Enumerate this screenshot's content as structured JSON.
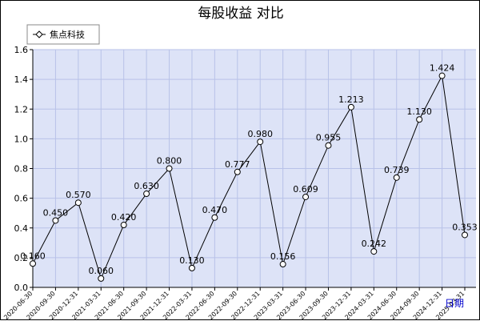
{
  "chart_data": {
    "type": "line",
    "title": "每股收益  对比",
    "xlabel": "日期",
    "ylabel": "",
    "ylim": [
      0,
      1.6
    ],
    "yticks": [
      "0.0",
      "0.2",
      "0.4",
      "0.6",
      "0.8",
      "1.0",
      "1.2",
      "1.4",
      "1.6"
    ],
    "grid": true,
    "legend_position": "top-left",
    "categories": [
      "2020-06-30",
      "2020-09-30",
      "2020-12-31",
      "2021-03-31",
      "2021-06-30",
      "2021-09-30",
      "2021-12-31",
      "2022-03-31",
      "2022-06-30",
      "2022-09-30",
      "2022-12-31",
      "2023-03-31",
      "2023-06-30",
      "2023-09-30",
      "2023-12-31",
      "2024-03-31",
      "2024-06-30",
      "2024-09-30",
      "2024-12-31",
      "2025-03-31"
    ],
    "series": [
      {
        "name": "焦点科技",
        "color": "#000000",
        "values": [
          0.16,
          0.45,
          0.57,
          0.06,
          0.42,
          0.63,
          0.8,
          0.13,
          0.47,
          0.777,
          0.98,
          0.156,
          0.609,
          0.955,
          1.213,
          0.242,
          0.739,
          1.13,
          1.424,
          0.353
        ],
        "labels": [
          "0.160",
          "0.450",
          "0.570",
          "0.060",
          "0.420",
          "0.630",
          "0.800",
          "0.130",
          "0.470",
          "0.777",
          "0.980",
          "0.156",
          "0.609",
          "0.955",
          "1.213",
          "0.242",
          "0.739",
          "1.130",
          "1.424",
          "0.353"
        ]
      }
    ],
    "colors": {
      "plot_background": "#dde3f7",
      "grid": "#b8c2e8",
      "line": "#000000"
    }
  }
}
